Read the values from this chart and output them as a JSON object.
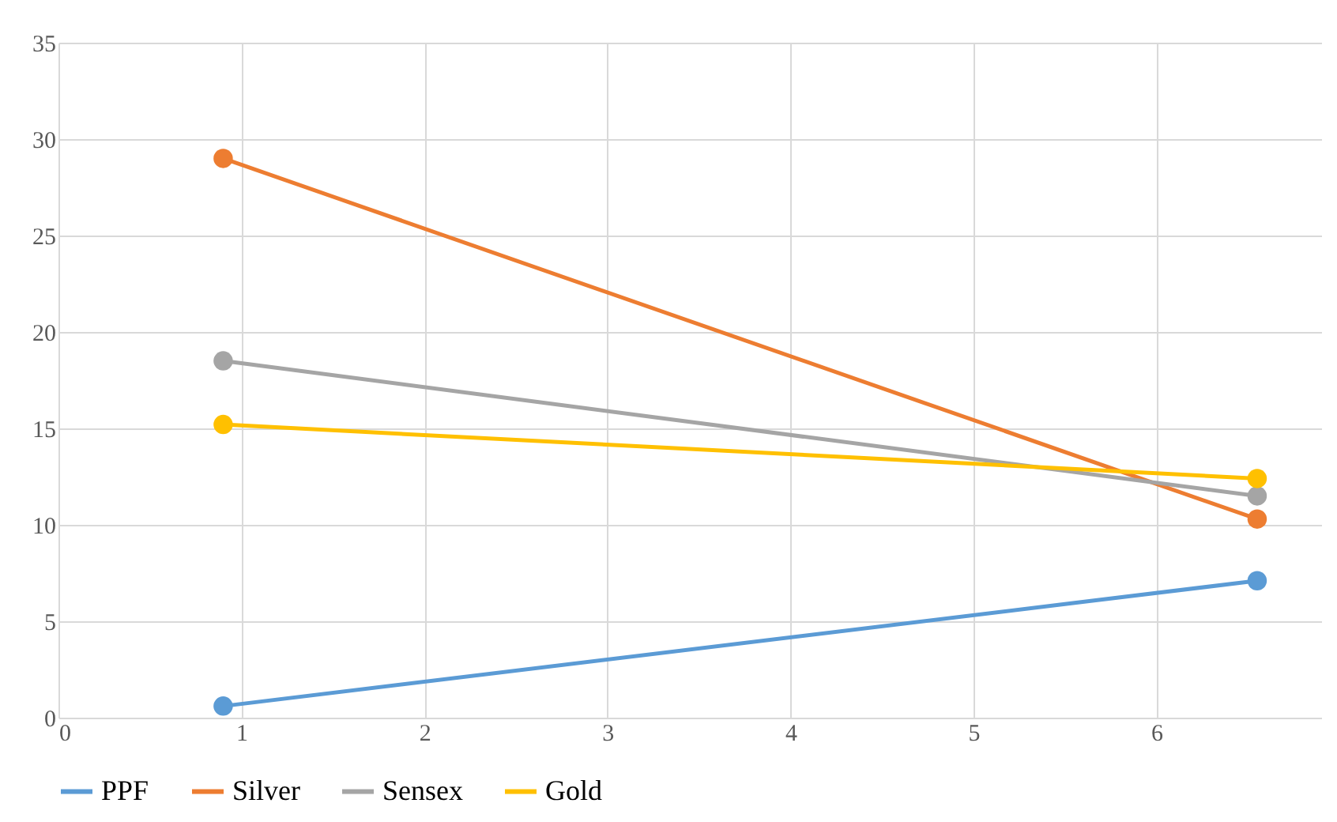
{
  "chart_data": {
    "type": "line",
    "x": [
      0.9,
      6.55
    ],
    "xlim": [
      0,
      6.9
    ],
    "xticks": [
      0,
      1,
      2,
      3,
      4,
      5,
      6
    ],
    "ylim": [
      0,
      35
    ],
    "yticks": [
      0,
      5,
      10,
      15,
      20,
      25,
      30,
      35
    ],
    "grid": true,
    "legend": "bottom",
    "marker": "circle",
    "line_style": "solid",
    "series": [
      {
        "name": "PPF",
        "color": "#5b9bd5",
        "values": [
          0.6,
          7.1
        ]
      },
      {
        "name": "Silver",
        "color": "#ed7d31",
        "values": [
          29,
          10.3
        ]
      },
      {
        "name": "Sensex",
        "color": "#a5a5a5",
        "values": [
          18.5,
          11.5
        ]
      },
      {
        "name": "Gold",
        "color": "#ffc000",
        "values": [
          15.2,
          12.4
        ]
      }
    ]
  }
}
